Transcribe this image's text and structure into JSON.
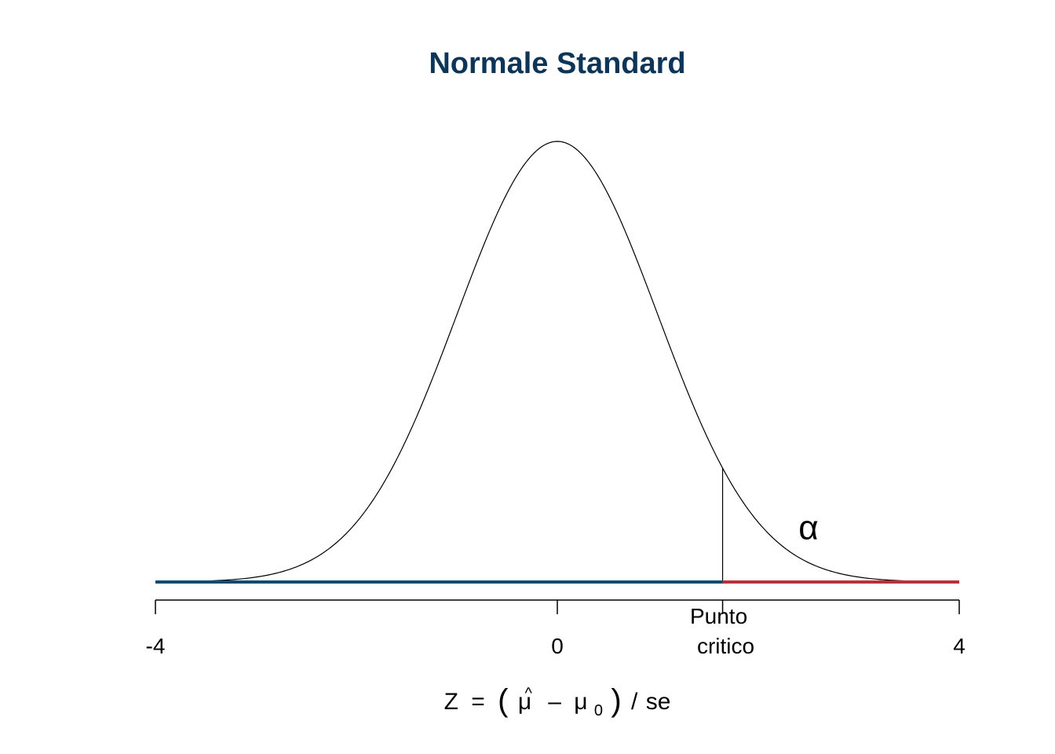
{
  "chart_data": {
    "type": "line",
    "title": "Normale Standard",
    "xlim": [
      -4,
      4
    ],
    "ylim": [
      0,
      0.4
    ],
    "grid": false,
    "x_ticks": [
      {
        "value": -4,
        "label": "-4"
      },
      {
        "value": 0,
        "label": "0"
      },
      {
        "value": 1.645,
        "label_lines": [
          "Punto",
          "critico"
        ]
      },
      {
        "value": 4,
        "label": "4"
      }
    ],
    "xlabel": {
      "lhs": "Z",
      "eq": "=",
      "lparen": "(",
      "mu_hat": "μ",
      "hat": "^",
      "minus": "–",
      "mu": "μ",
      "sub": "0",
      "rparen": ")",
      "slash": "/",
      "se": "se"
    },
    "series": [
      {
        "distribution": "standard normal density",
        "mean": 0,
        "sd": 1,
        "x_range": [
          -4,
          4
        ],
        "color": "#000000"
      }
    ],
    "critical_value": 1.645,
    "rejection_region": {
      "from": 1.645,
      "to": 4,
      "color": "#b5333b"
    },
    "acceptance_region": {
      "from": -4,
      "to": 1.645,
      "color": "#134a72"
    },
    "annotation": {
      "text": "α",
      "x": 2.5,
      "y": 0.05
    }
  }
}
